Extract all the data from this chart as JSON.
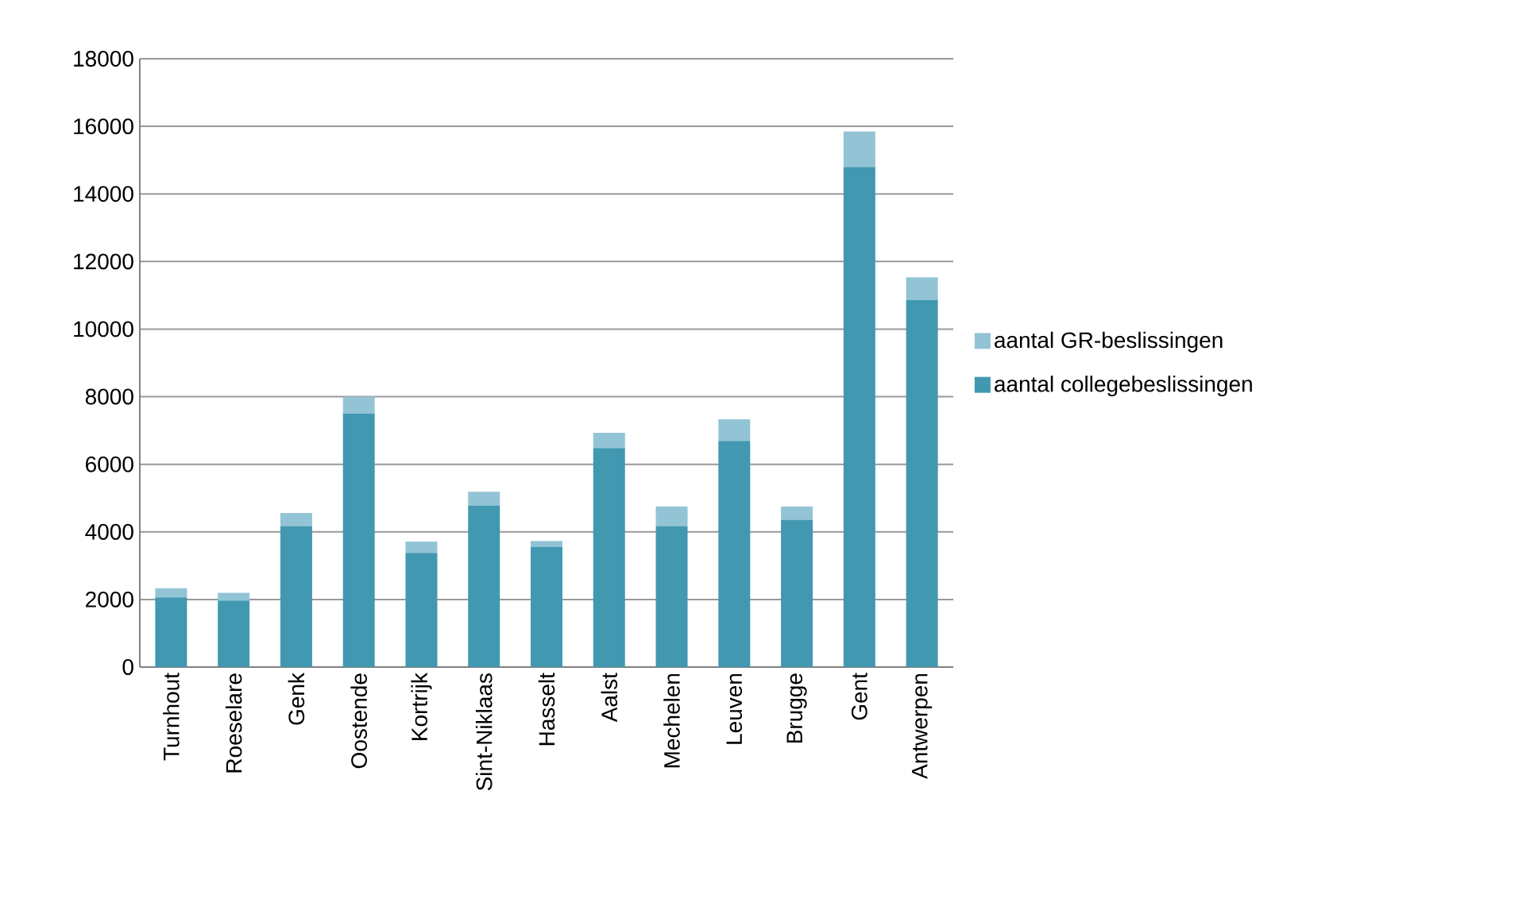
{
  "chart_data": {
    "type": "bar",
    "stacked": true,
    "categories": [
      "Turnhout",
      "Roeselare",
      "Genk",
      "Oostende",
      "Kortrijk",
      "Sint-Niklaas",
      "Hasselt",
      "Aalst",
      "Mechelen",
      "Leuven",
      "Brugge",
      "Gent",
      "Antwerpen"
    ],
    "series": [
      {
        "name": "aantal collegebeslissingen",
        "color": "#4198b0",
        "values": [
          2060,
          1970,
          4170,
          7500,
          3380,
          4780,
          3560,
          6480,
          4170,
          6690,
          4360,
          14800,
          10860
        ]
      },
      {
        "name": "aantal GR-beslissingen",
        "color": "#93c4d6",
        "values": [
          270,
          230,
          390,
          500,
          330,
          410,
          170,
          450,
          580,
          640,
          390,
          1050,
          670
        ]
      }
    ],
    "ylim": [
      0,
      18000
    ],
    "yticks": [
      0,
      2000,
      4000,
      6000,
      8000,
      10000,
      12000,
      14000,
      16000,
      18000
    ],
    "grid": "y",
    "legend": "right"
  }
}
